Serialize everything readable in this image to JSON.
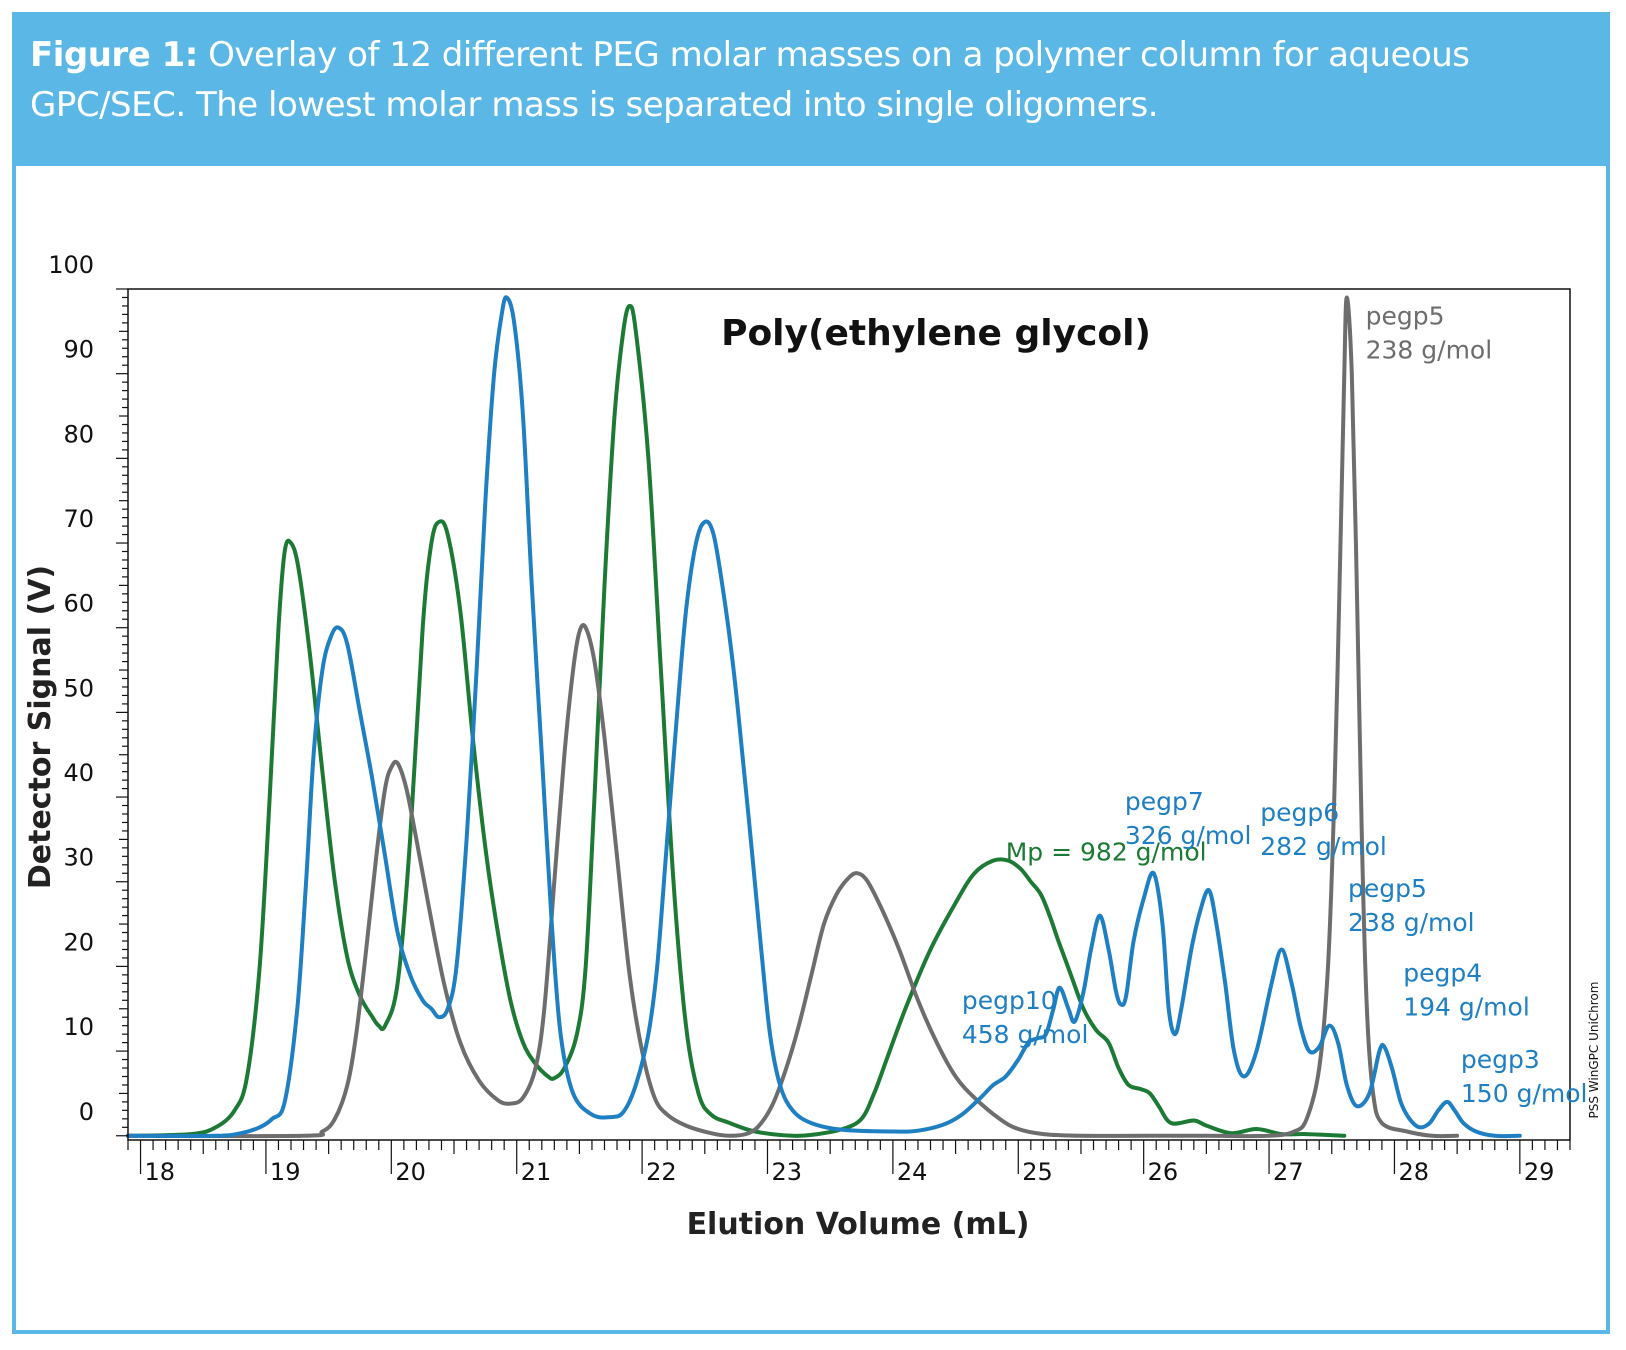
{
  "caption": {
    "label": "Figure 1:",
    "text": " Overlay of 12 different PEG molar masses on a polymer column for aqueous GPC/SEC. The lowest molar mass is separated into single oligomers."
  },
  "vendor_mark": "PSS WinGPC UniChrom",
  "colors": {
    "frame": "#5bb8e6",
    "green": "#1c7a35",
    "blue": "#1e7fc2",
    "gray": "#6d6d6d"
  },
  "chart_data": {
    "type": "line",
    "title": "Poly(ethylene glycol)",
    "xlabel": "Elution Volume (mL)",
    "ylabel": "Detector Signal (V)",
    "xlim": [
      17.9,
      29.4
    ],
    "ylim": [
      -0.5,
      100
    ],
    "x_ticks": [
      18,
      19,
      20,
      21,
      22,
      23,
      24,
      25,
      26,
      27,
      28,
      29
    ],
    "y_ticks": [
      0,
      10,
      20,
      30,
      40,
      50,
      60,
      70,
      80,
      90,
      100
    ],
    "grid": false,
    "annotations": [
      {
        "id": "mp",
        "lines": [
          "Mp = 982 g/mol"
        ],
        "x": 24.9,
        "y": 32.5,
        "color": "green"
      },
      {
        "id": "pegp10",
        "lines": [
          "pegp10",
          "458 g/mol"
        ],
        "x": 24.55,
        "y": 15.0,
        "color": "blue"
      },
      {
        "id": "pegp7",
        "lines": [
          "pegp7",
          "326 g/mol"
        ],
        "x": 25.85,
        "y": 38.5,
        "color": "blue"
      },
      {
        "id": "pegp6",
        "lines": [
          "pegp6",
          "282 g/mol"
        ],
        "x": 26.93,
        "y": 37.2,
        "color": "blue"
      },
      {
        "id": "pegp5b",
        "lines": [
          "pegp5",
          "238 g/mol"
        ],
        "x": 27.63,
        "y": 28.2,
        "color": "blue"
      },
      {
        "id": "pegp4",
        "lines": [
          "pegp4",
          "194 g/mol"
        ],
        "x": 28.07,
        "y": 18.2,
        "color": "blue"
      },
      {
        "id": "pegp3",
        "lines": [
          "pegp3",
          "150 g/mol"
        ],
        "x": 28.53,
        "y": 8.0,
        "color": "blue"
      },
      {
        "id": "pegp5g",
        "lines": [
          "pegp5",
          "238 g/mol"
        ],
        "x": 27.77,
        "y": 95.8,
        "color": "gray"
      }
    ],
    "series": [
      {
        "color": "green",
        "points": [
          [
            17.9,
            0
          ],
          [
            18.4,
            0.2
          ],
          [
            18.6,
            1
          ],
          [
            18.75,
            3
          ],
          [
            18.85,
            7
          ],
          [
            18.95,
            20
          ],
          [
            19.03,
            40
          ],
          [
            19.1,
            60
          ],
          [
            19.15,
            69
          ],
          [
            19.2,
            70
          ],
          [
            19.26,
            67
          ],
          [
            19.35,
            57
          ],
          [
            19.45,
            43
          ],
          [
            19.55,
            30
          ],
          [
            19.65,
            21
          ],
          [
            19.75,
            16.5
          ],
          [
            19.85,
            14
          ],
          [
            19.9,
            13
          ],
          [
            19.95,
            13
          ],
          [
            20.05,
            18
          ],
          [
            20.15,
            35
          ],
          [
            20.25,
            60
          ],
          [
            20.32,
            70
          ],
          [
            20.38,
            72.5
          ],
          [
            20.45,
            71
          ],
          [
            20.55,
            62
          ],
          [
            20.65,
            47
          ],
          [
            20.75,
            34
          ],
          [
            20.85,
            24
          ],
          [
            20.95,
            16
          ],
          [
            21.05,
            11
          ],
          [
            21.15,
            8.5
          ],
          [
            21.25,
            7
          ],
          [
            21.3,
            6.8
          ],
          [
            21.38,
            8
          ],
          [
            21.48,
            12
          ],
          [
            21.55,
            20
          ],
          [
            21.62,
            40
          ],
          [
            21.7,
            65
          ],
          [
            21.78,
            85
          ],
          [
            21.85,
            95
          ],
          [
            21.9,
            98
          ],
          [
            21.95,
            95
          ],
          [
            22.05,
            80
          ],
          [
            22.15,
            55
          ],
          [
            22.25,
            30
          ],
          [
            22.35,
            13
          ],
          [
            22.45,
            5
          ],
          [
            22.55,
            2.5
          ],
          [
            22.7,
            1.5
          ],
          [
            22.9,
            0.5
          ],
          [
            23.2,
            0
          ],
          [
            23.4,
            0.2
          ],
          [
            23.6,
            0.8
          ],
          [
            23.75,
            2
          ],
          [
            23.85,
            5
          ],
          [
            23.95,
            9
          ],
          [
            24.1,
            15
          ],
          [
            24.3,
            22
          ],
          [
            24.5,
            27.5
          ],
          [
            24.65,
            31
          ],
          [
            24.8,
            32.5
          ],
          [
            24.92,
            32.5
          ],
          [
            25.02,
            31.5
          ],
          [
            25.1,
            30
          ],
          [
            25.18,
            28.5
          ],
          [
            25.25,
            26
          ],
          [
            25.32,
            23
          ],
          [
            25.42,
            19
          ],
          [
            25.52,
            15
          ],
          [
            25.62,
            12.5
          ],
          [
            25.72,
            11
          ],
          [
            25.8,
            8
          ],
          [
            25.88,
            6
          ],
          [
            25.98,
            5.5
          ],
          [
            26.05,
            5
          ],
          [
            26.12,
            3.5
          ],
          [
            26.22,
            1.5
          ],
          [
            26.4,
            1.8
          ],
          [
            26.5,
            1.2
          ],
          [
            26.7,
            0.3
          ],
          [
            26.9,
            0.8
          ],
          [
            27.1,
            0.2
          ],
          [
            27.3,
            0.2
          ],
          [
            27.6,
            0
          ]
        ]
      },
      {
        "color": "gray",
        "points": [
          [
            17.9,
            0
          ],
          [
            19.3,
            0
          ],
          [
            19.45,
            0.5
          ],
          [
            19.55,
            2
          ],
          [
            19.65,
            6
          ],
          [
            19.72,
            12
          ],
          [
            19.8,
            22
          ],
          [
            19.88,
            33
          ],
          [
            19.95,
            41
          ],
          [
            20.0,
            43.5
          ],
          [
            20.05,
            44
          ],
          [
            20.12,
            41
          ],
          [
            20.2,
            35
          ],
          [
            20.3,
            27
          ],
          [
            20.42,
            18
          ],
          [
            20.55,
            11
          ],
          [
            20.7,
            6.5
          ],
          [
            20.85,
            4.2
          ],
          [
            20.95,
            3.8
          ],
          [
            21.05,
            4.5
          ],
          [
            21.15,
            8
          ],
          [
            21.22,
            15
          ],
          [
            21.3,
            30
          ],
          [
            21.38,
            45
          ],
          [
            21.45,
            55
          ],
          [
            21.5,
            59.5
          ],
          [
            21.55,
            60
          ],
          [
            21.62,
            56
          ],
          [
            21.7,
            47
          ],
          [
            21.8,
            33
          ],
          [
            21.9,
            19
          ],
          [
            22.0,
            10
          ],
          [
            22.1,
            4.5
          ],
          [
            22.2,
            2.5
          ],
          [
            22.35,
            1.2
          ],
          [
            22.55,
            0.3
          ],
          [
            22.7,
            0
          ],
          [
            22.85,
            0.3
          ],
          [
            22.95,
            1.5
          ],
          [
            23.05,
            4
          ],
          [
            23.15,
            8
          ],
          [
            23.25,
            13
          ],
          [
            23.35,
            19
          ],
          [
            23.45,
            25
          ],
          [
            23.55,
            28.5
          ],
          [
            23.65,
            30.5
          ],
          [
            23.72,
            31
          ],
          [
            23.8,
            30
          ],
          [
            23.92,
            26.5
          ],
          [
            24.05,
            22
          ],
          [
            24.2,
            16
          ],
          [
            24.35,
            11
          ],
          [
            24.5,
            7
          ],
          [
            24.65,
            4.5
          ],
          [
            24.85,
            2
          ],
          [
            25.0,
            0.8
          ],
          [
            25.2,
            0.2
          ],
          [
            25.5,
            0
          ],
          [
            26.0,
            0
          ],
          [
            26.5,
            0
          ],
          [
            27.0,
            0
          ],
          [
            27.2,
            0.5
          ],
          [
            27.3,
            2
          ],
          [
            27.4,
            8
          ],
          [
            27.47,
            20
          ],
          [
            27.52,
            40
          ],
          [
            27.57,
            70
          ],
          [
            27.6,
            90
          ],
          [
            27.62,
            99
          ],
          [
            27.66,
            90
          ],
          [
            27.7,
            65
          ],
          [
            27.74,
            35
          ],
          [
            27.78,
            15
          ],
          [
            27.83,
            5
          ],
          [
            27.9,
            1.5
          ],
          [
            28.1,
            0.5
          ],
          [
            28.3,
            0
          ],
          [
            28.5,
            0
          ]
        ]
      },
      {
        "color": "blue",
        "points": [
          [
            17.9,
            0
          ],
          [
            18.6,
            0
          ],
          [
            18.8,
            0.3
          ],
          [
            18.95,
            1
          ],
          [
            19.05,
            2
          ],
          [
            19.15,
            4
          ],
          [
            19.25,
            15
          ],
          [
            19.32,
            30
          ],
          [
            19.38,
            45
          ],
          [
            19.45,
            55
          ],
          [
            19.52,
            59
          ],
          [
            19.58,
            60
          ],
          [
            19.65,
            58
          ],
          [
            19.75,
            50
          ],
          [
            19.85,
            42
          ],
          [
            19.95,
            33
          ],
          [
            20.05,
            24
          ],
          [
            20.15,
            19
          ],
          [
            20.25,
            16
          ],
          [
            20.32,
            15
          ],
          [
            20.38,
            14
          ],
          [
            20.45,
            15
          ],
          [
            20.52,
            20
          ],
          [
            20.6,
            35
          ],
          [
            20.68,
            55
          ],
          [
            20.75,
            75
          ],
          [
            20.82,
            90
          ],
          [
            20.88,
            97
          ],
          [
            20.92,
            99
          ],
          [
            20.98,
            96
          ],
          [
            21.05,
            85
          ],
          [
            21.12,
            65
          ],
          [
            21.2,
            45
          ],
          [
            21.28,
            25
          ],
          [
            21.35,
            12
          ],
          [
            21.45,
            5
          ],
          [
            21.6,
            2.5
          ],
          [
            21.75,
            2.2
          ],
          [
            21.85,
            2.8
          ],
          [
            21.95,
            6
          ],
          [
            22.05,
            12
          ],
          [
            22.12,
            20
          ],
          [
            22.2,
            35
          ],
          [
            22.28,
            50
          ],
          [
            22.35,
            62
          ],
          [
            22.43,
            70
          ],
          [
            22.5,
            72.5
          ],
          [
            22.57,
            71
          ],
          [
            22.65,
            64
          ],
          [
            22.73,
            55
          ],
          [
            22.8,
            45
          ],
          [
            22.88,
            33
          ],
          [
            22.95,
            22
          ],
          [
            23.02,
            12
          ],
          [
            23.1,
            6
          ],
          [
            23.2,
            3
          ],
          [
            23.35,
            1.5
          ],
          [
            23.6,
            0.7
          ],
          [
            24.0,
            0.5
          ],
          [
            24.2,
            0.6
          ],
          [
            24.4,
            1.3
          ],
          [
            24.55,
            2.5
          ],
          [
            24.7,
            4.5
          ],
          [
            24.8,
            6
          ],
          [
            24.9,
            7
          ],
          [
            25.0,
            9
          ],
          [
            25.08,
            11
          ],
          [
            25.15,
            11.5
          ],
          [
            25.22,
            12
          ],
          [
            25.28,
            15
          ],
          [
            25.33,
            17.5
          ],
          [
            25.4,
            15
          ],
          [
            25.45,
            13.5
          ],
          [
            25.52,
            17
          ],
          [
            25.58,
            22
          ],
          [
            25.65,
            26
          ],
          [
            25.72,
            22
          ],
          [
            25.78,
            17
          ],
          [
            25.82,
            15.5
          ],
          [
            25.86,
            16.5
          ],
          [
            25.92,
            23
          ],
          [
            26.0,
            28
          ],
          [
            26.08,
            31
          ],
          [
            26.15,
            25
          ],
          [
            26.2,
            15
          ],
          [
            26.25,
            12
          ],
          [
            26.3,
            15
          ],
          [
            26.38,
            22
          ],
          [
            26.45,
            26.5
          ],
          [
            26.52,
            29
          ],
          [
            26.58,
            25
          ],
          [
            26.65,
            18
          ],
          [
            26.72,
            10
          ],
          [
            26.8,
            7
          ],
          [
            26.9,
            10
          ],
          [
            27.02,
            18
          ],
          [
            27.1,
            22
          ],
          [
            27.18,
            18
          ],
          [
            27.25,
            13
          ],
          [
            27.32,
            10
          ],
          [
            27.4,
            10.5
          ],
          [
            27.48,
            13
          ],
          [
            27.55,
            11
          ],
          [
            27.62,
            6
          ],
          [
            27.7,
            3.5
          ],
          [
            27.8,
            5
          ],
          [
            27.88,
            10
          ],
          [
            27.92,
            10.5
          ],
          [
            27.98,
            8
          ],
          [
            28.05,
            4
          ],
          [
            28.12,
            2
          ],
          [
            28.2,
            1
          ],
          [
            28.28,
            1.5
          ],
          [
            28.35,
            3
          ],
          [
            28.42,
            4
          ],
          [
            28.48,
            3
          ],
          [
            28.55,
            1.5
          ],
          [
            28.65,
            0.5
          ],
          [
            28.8,
            0
          ],
          [
            29.0,
            0
          ]
        ]
      }
    ]
  }
}
